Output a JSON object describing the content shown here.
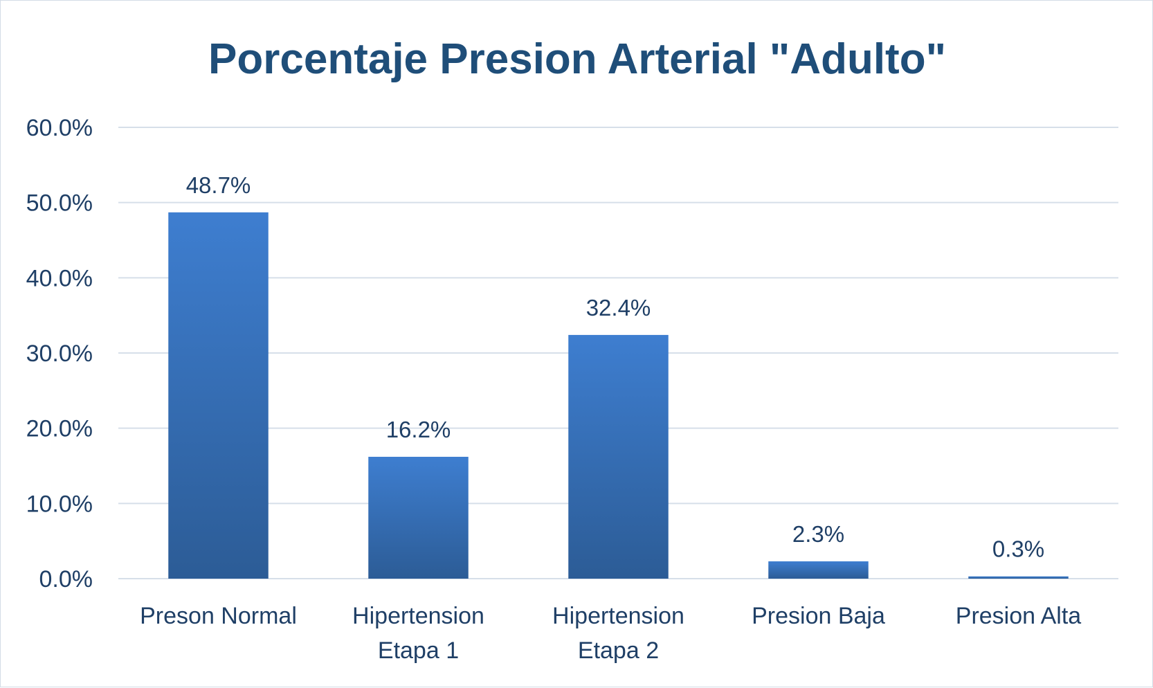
{
  "chart_data": {
    "type": "bar",
    "title": "Porcentaje Presion Arterial \"Adulto\"",
    "categories": [
      [
        "Preson Normal"
      ],
      [
        "Hipertension",
        "Etapa 1"
      ],
      [
        "Hipertension",
        "Etapa 2"
      ],
      [
        "Presion Baja"
      ],
      [
        "Presion Alta"
      ]
    ],
    "values": [
      48.7,
      16.2,
      32.4,
      2.3,
      0.3
    ],
    "data_labels": [
      "48.7%",
      "16.2%",
      "32.4%",
      "2.3%",
      "0.3%"
    ],
    "ylim": [
      0,
      60
    ],
    "yticks": [
      "0.0%",
      "10.0%",
      "20.0%",
      "30.0%",
      "40.0%",
      "50.0%",
      "60.0%"
    ],
    "grid": true,
    "legend": "none",
    "colors": {
      "bar_top": "#3e7ed0",
      "bar_bottom": "#2c5c96",
      "text": "#1f3f66",
      "title": "#1f4e79",
      "grid": "#d6dfe9"
    }
  }
}
